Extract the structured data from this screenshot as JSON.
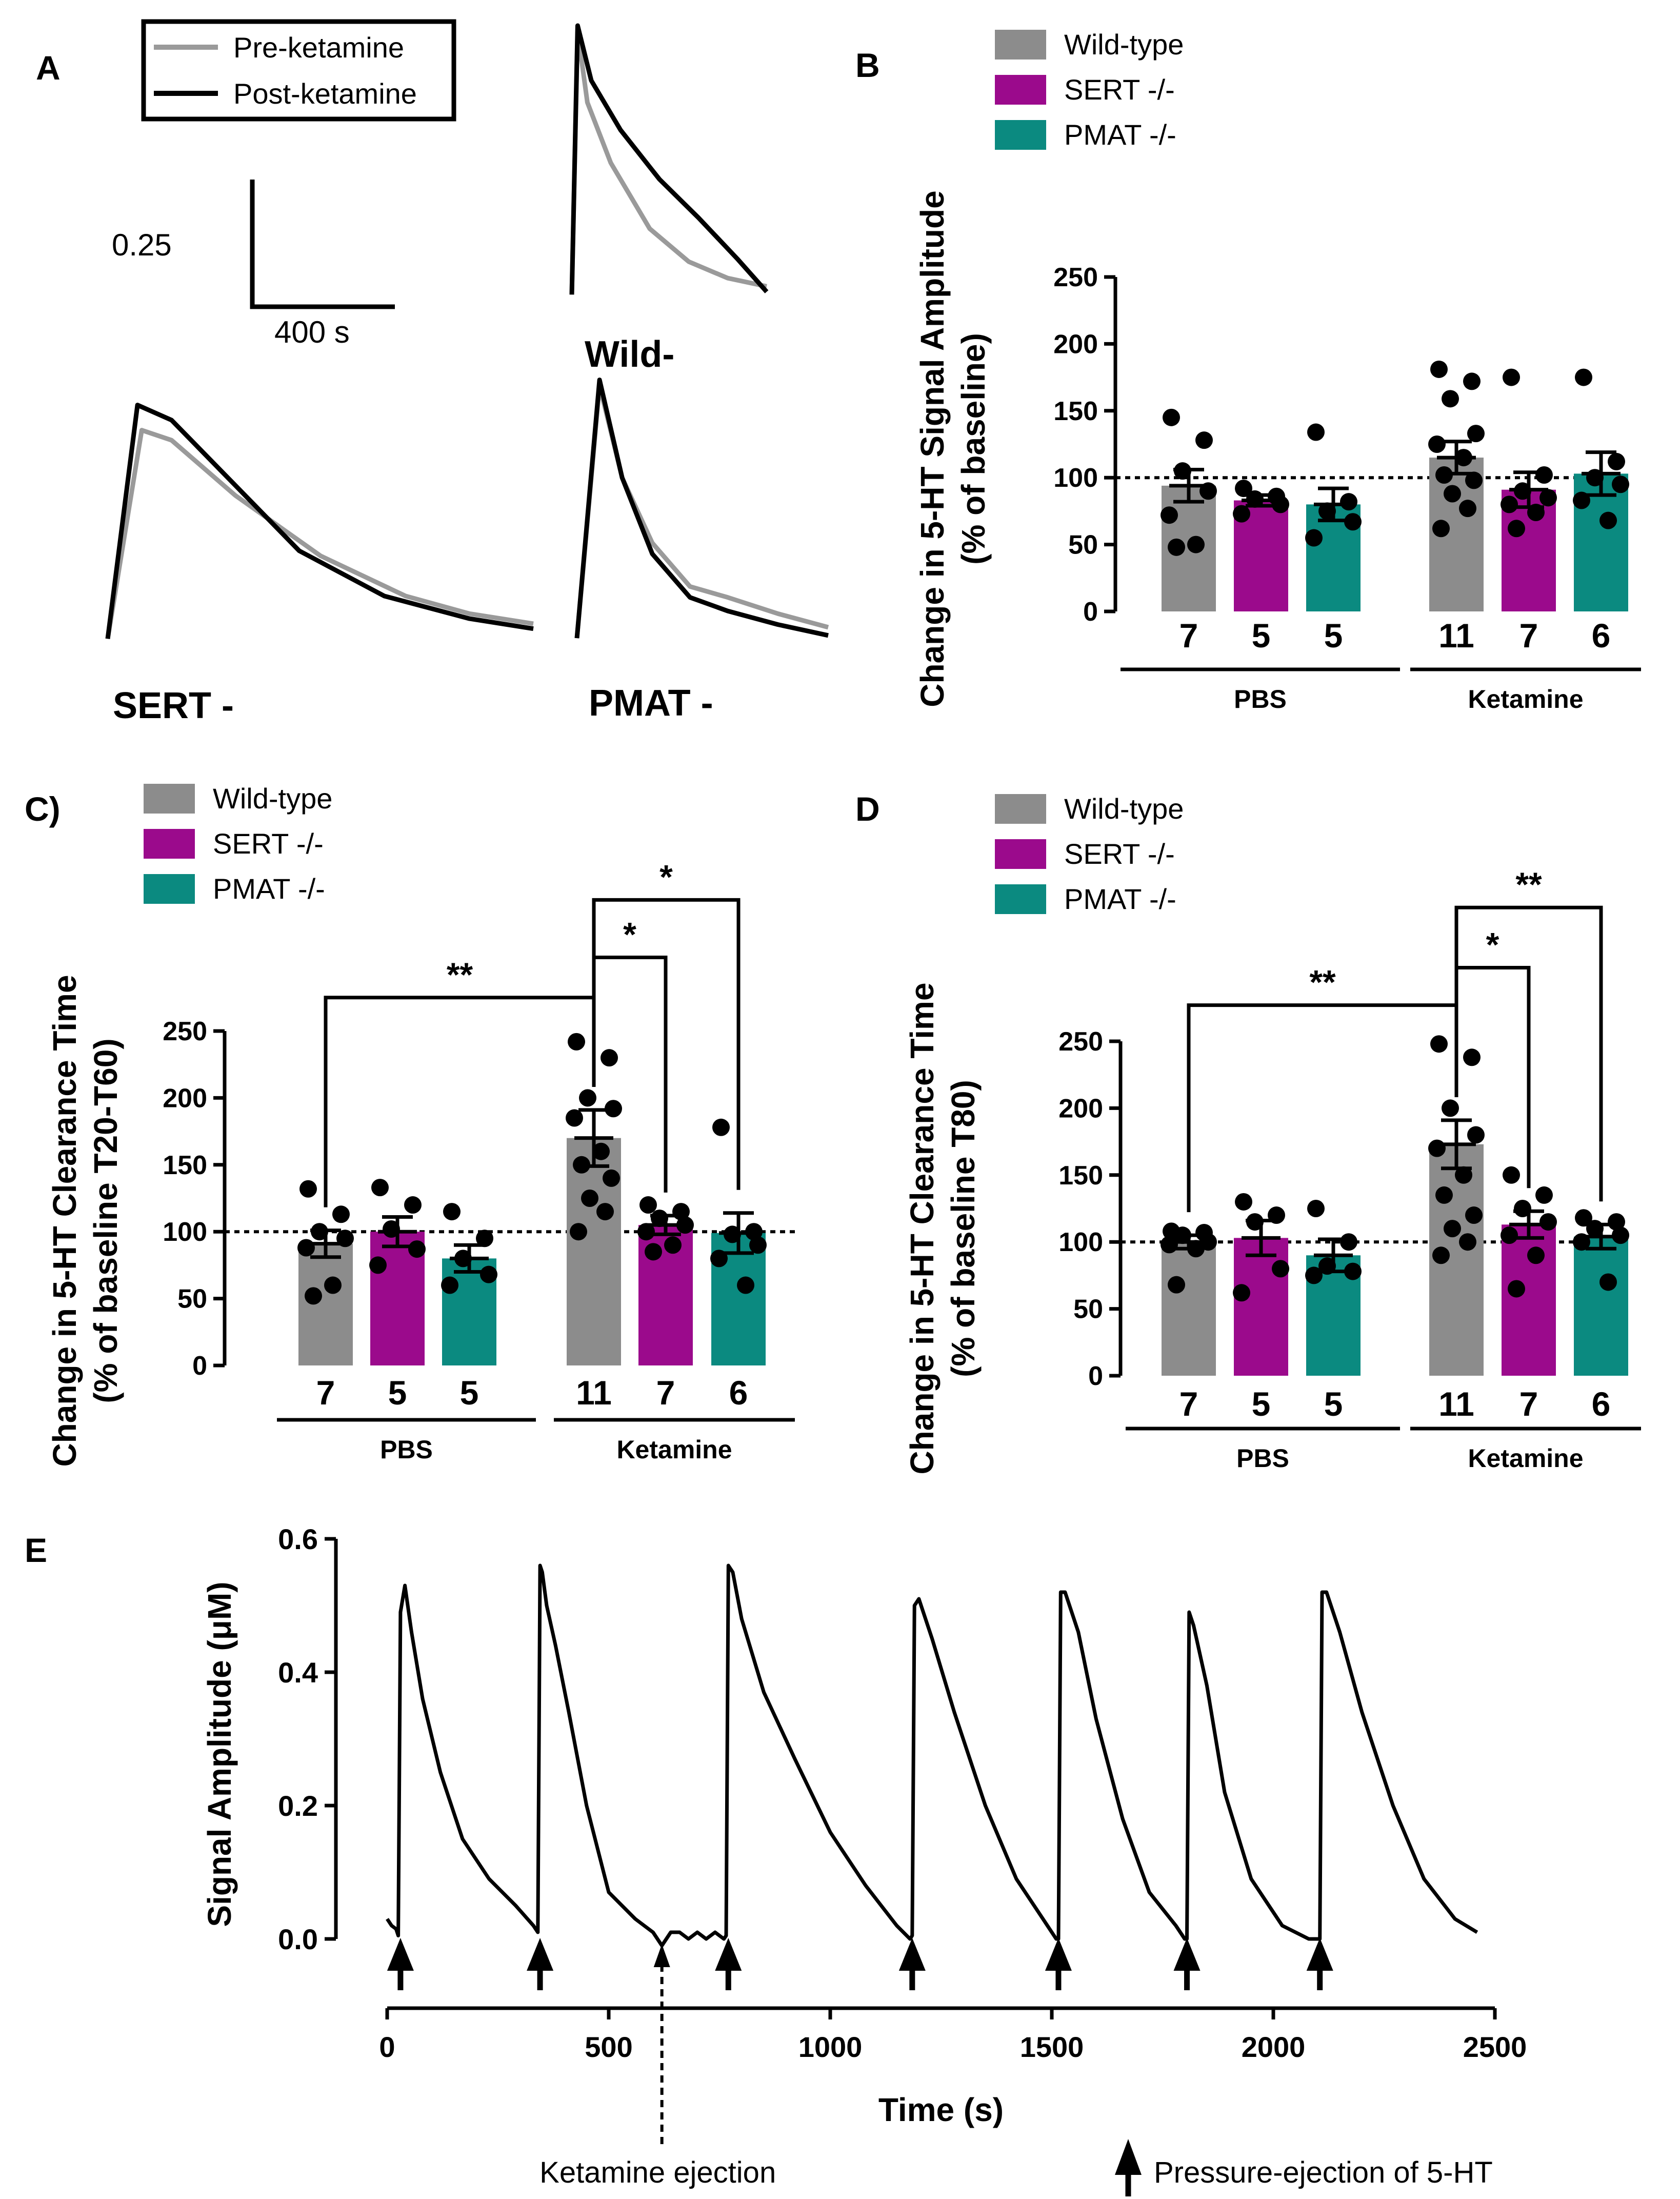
{
  "colors": {
    "wt": "#8c8c8c",
    "sert": "#9b0a8c",
    "pmat": "#0b8a80",
    "pre": "#9a9a9a",
    "post": "#000000"
  },
  "group_names": [
    "Wild-type",
    "SERT -/-",
    "PMAT -/-"
  ],
  "chart_data": [
    {
      "panel": "A",
      "type": "line",
      "label": "A",
      "legend": [
        "Pre-ketamine",
        "Post-ketamine"
      ],
      "scalebar": {
        "y_label": "0.25",
        "x_label": "400 s"
      },
      "subplots": [
        {
          "label": "Wild-",
          "pre": [
            [
              0,
              0.02
            ],
            [
              0.03,
              0.98
            ],
            [
              0.08,
              0.72
            ],
            [
              0.2,
              0.5
            ],
            [
              0.4,
              0.26
            ],
            [
              0.6,
              0.14
            ],
            [
              0.8,
              0.08
            ],
            [
              1,
              0.05
            ]
          ],
          "post": [
            [
              0,
              0.02
            ],
            [
              0.03,
              1.0
            ],
            [
              0.1,
              0.8
            ],
            [
              0.25,
              0.62
            ],
            [
              0.45,
              0.44
            ],
            [
              0.65,
              0.3
            ],
            [
              0.85,
              0.15
            ],
            [
              1,
              0.03
            ]
          ]
        },
        {
          "label": "SERT -",
          "pre": [
            [
              0,
              0.03
            ],
            [
              0.08,
              0.86
            ],
            [
              0.15,
              0.82
            ],
            [
              0.3,
              0.6
            ],
            [
              0.5,
              0.36
            ],
            [
              0.7,
              0.2
            ],
            [
              0.85,
              0.13
            ],
            [
              1,
              0.09
            ]
          ],
          "post": [
            [
              0,
              0.03
            ],
            [
              0.07,
              0.96
            ],
            [
              0.15,
              0.9
            ],
            [
              0.3,
              0.64
            ],
            [
              0.45,
              0.38
            ],
            [
              0.65,
              0.2
            ],
            [
              0.85,
              0.11
            ],
            [
              1,
              0.07
            ]
          ]
        },
        {
          "label": "PMAT -",
          "pre": [
            [
              0,
              0.03
            ],
            [
              0.09,
              0.96
            ],
            [
              0.18,
              0.62
            ],
            [
              0.3,
              0.38
            ],
            [
              0.45,
              0.22
            ],
            [
              0.6,
              0.18
            ],
            [
              0.8,
              0.12
            ],
            [
              1,
              0.07
            ]
          ],
          "post": [
            [
              0,
              0.03
            ],
            [
              0.09,
              0.98
            ],
            [
              0.18,
              0.62
            ],
            [
              0.3,
              0.34
            ],
            [
              0.45,
              0.18
            ],
            [
              0.6,
              0.13
            ],
            [
              0.8,
              0.08
            ],
            [
              1,
              0.04
            ]
          ]
        }
      ]
    },
    {
      "panel": "B",
      "type": "bar",
      "label": "B",
      "ylabel_line1": "Change in 5-HT Signal Amplitude",
      "ylabel_line2": "(% of baseline)",
      "ylim": [
        0,
        250
      ],
      "yticks": [
        "0",
        "50",
        "100",
        "150",
        "200",
        "250"
      ],
      "baseline": 100,
      "groups": [
        "PBS",
        "Ketamine"
      ],
      "series": [
        "Wild-type",
        "SERT -/-",
        "PMAT -/-"
      ],
      "bars": [
        {
          "group": "PBS",
          "series": 0,
          "mean": 94,
          "sem": 12,
          "n": "7",
          "points": [
            145,
            128,
            105,
            90,
            72,
            50,
            48
          ]
        },
        {
          "group": "PBS",
          "series": 1,
          "mean": 83,
          "sem": 4,
          "n": "5",
          "points": [
            92,
            86,
            84,
            80,
            73
          ]
        },
        {
          "group": "PBS",
          "series": 2,
          "mean": 80,
          "sem": 12,
          "n": "5",
          "points": [
            134,
            82,
            75,
            67,
            55
          ]
        },
        {
          "group": "Ketamine",
          "series": 0,
          "mean": 115,
          "sem": 12,
          "n": "11",
          "points": [
            181,
            172,
            159,
            133,
            125,
            115,
            102,
            98,
            88,
            77,
            62
          ]
        },
        {
          "group": "Ketamine",
          "series": 1,
          "mean": 91,
          "sem": 13,
          "n": "7",
          "points": [
            175,
            102,
            90,
            85,
            80,
            74,
            62
          ]
        },
        {
          "group": "Ketamine",
          "series": 2,
          "mean": 103,
          "sem": 16,
          "n": "6",
          "points": [
            175,
            112,
            100,
            95,
            83,
            68
          ]
        }
      ],
      "brackets": []
    },
    {
      "panel": "C",
      "type": "bar",
      "label": "C)",
      "ylabel_line1": "Change in 5-HT Clearance Time",
      "ylabel_line2": "(% of baseline T20-T60)",
      "ylim": [
        0,
        250
      ],
      "yticks": [
        "0",
        "50",
        "100",
        "150",
        "200",
        "250"
      ],
      "baseline": 100,
      "groups": [
        "PBS",
        "Ketamine"
      ],
      "series": [
        "Wild-type",
        "SERT -/-",
        "PMAT -/-"
      ],
      "bars": [
        {
          "group": "PBS",
          "series": 0,
          "mean": 91,
          "sem": 10,
          "n": "7",
          "points": [
            132,
            113,
            100,
            95,
            88,
            60,
            52
          ]
        },
        {
          "group": "PBS",
          "series": 1,
          "mean": 100,
          "sem": 11,
          "n": "5",
          "points": [
            133,
            120,
            102,
            87,
            75
          ]
        },
        {
          "group": "PBS",
          "series": 2,
          "mean": 80,
          "sem": 10,
          "n": "5",
          "points": [
            115,
            95,
            80,
            68,
            60
          ]
        },
        {
          "group": "Ketamine",
          "series": 0,
          "mean": 170,
          "sem": 21,
          "n": "11",
          "points": [
            242,
            230,
            200,
            192,
            185,
            160,
            150,
            140,
            125,
            115,
            100
          ]
        },
        {
          "group": "Ketamine",
          "series": 1,
          "mean": 105,
          "sem": 7,
          "n": "7",
          "points": [
            120,
            115,
            110,
            105,
            100,
            90,
            85
          ]
        },
        {
          "group": "Ketamine",
          "series": 2,
          "mean": 99,
          "sem": 15,
          "n": "6",
          "points": [
            178,
            100,
            98,
            90,
            80,
            60
          ]
        }
      ],
      "brackets": [
        {
          "from": 0,
          "to": 3,
          "y": 275,
          "label": "**"
        },
        {
          "from": 3,
          "to": 4,
          "y": 305,
          "label": "*"
        },
        {
          "from": 3,
          "to": 5,
          "y": 348,
          "label": "*"
        }
      ]
    },
    {
      "panel": "D",
      "type": "bar",
      "label": "D",
      "ylabel_line1": "Change in 5-HT Clearance Time",
      "ylabel_line2": "(% of baseline T80)",
      "ylim": [
        0,
        250
      ],
      "yticks": [
        "0",
        "50",
        "100",
        "150",
        "200",
        "250"
      ],
      "baseline": 100,
      "groups": [
        "PBS",
        "Ketamine"
      ],
      "series": [
        "Wild-type",
        "SERT -/-",
        "PMAT -/-"
      ],
      "bars": [
        {
          "group": "PBS",
          "series": 0,
          "mean": 100,
          "sem": 5,
          "n": "7",
          "points": [
            108,
            107,
            105,
            100,
            98,
            95,
            68
          ]
        },
        {
          "group": "PBS",
          "series": 1,
          "mean": 103,
          "sem": 13,
          "n": "5",
          "points": [
            130,
            120,
            115,
            80,
            62
          ]
        },
        {
          "group": "PBS",
          "series": 2,
          "mean": 90,
          "sem": 12,
          "n": "5",
          "points": [
            125,
            100,
            82,
            78,
            75
          ]
        },
        {
          "group": "Ketamine",
          "series": 0,
          "mean": 173,
          "sem": 18,
          "n": "11",
          "points": [
            248,
            238,
            200,
            180,
            170,
            150,
            135,
            120,
            110,
            100,
            90
          ]
        },
        {
          "group": "Ketamine",
          "series": 1,
          "mean": 113,
          "sem": 10,
          "n": "7",
          "points": [
            150,
            135,
            125,
            115,
            105,
            90,
            65
          ]
        },
        {
          "group": "Ketamine",
          "series": 2,
          "mean": 104,
          "sem": 9,
          "n": "6",
          "points": [
            118,
            115,
            110,
            105,
            100,
            70
          ]
        }
      ],
      "brackets": [
        {
          "from": 0,
          "to": 3,
          "y": 277,
          "label": "**"
        },
        {
          "from": 3,
          "to": 4,
          "y": 305,
          "label": "*"
        },
        {
          "from": 3,
          "to": 5,
          "y": 350,
          "label": "**"
        }
      ]
    },
    {
      "panel": "E",
      "type": "line",
      "label": "E",
      "ylabel": "Signal Amplitude (μM)",
      "xlabel": "Time (s)",
      "xlim": [
        0,
        2500
      ],
      "ylim": [
        0,
        0.6
      ],
      "xticks": [
        "0",
        "500",
        "1000",
        "1500",
        "2000",
        "2500"
      ],
      "yticks": [
        "0.0",
        "0.2",
        "0.4",
        "0.6"
      ],
      "series": [
        {
          "name": "trace",
          "x": [
            0,
            10,
            20,
            25,
            30,
            40,
            55,
            80,
            120,
            170,
            230,
            290,
            330,
            340,
            345,
            350,
            360,
            380,
            410,
            450,
            500,
            560,
            600,
            620,
            640,
            660,
            680,
            700,
            720,
            740,
            760,
            765,
            770,
            780,
            800,
            850,
            920,
            1000,
            1080,
            1150,
            1180,
            1185,
            1190,
            1200,
            1230,
            1280,
            1350,
            1420,
            1490,
            1510,
            1515,
            1520,
            1530,
            1560,
            1600,
            1660,
            1720,
            1780,
            1800,
            1805,
            1810,
            1820,
            1850,
            1890,
            1950,
            2020,
            2080,
            2100,
            2105,
            2110,
            2120,
            2150,
            2200,
            2270,
            2340,
            2410,
            2460
          ],
          "y": [
            0.03,
            0.02,
            0.015,
            0.005,
            0.49,
            0.53,
            0.46,
            0.36,
            0.25,
            0.15,
            0.09,
            0.05,
            0.02,
            0.01,
            0.56,
            0.55,
            0.5,
            0.44,
            0.34,
            0.2,
            0.07,
            0.03,
            0.01,
            -0.01,
            0.01,
            0.01,
            0.0,
            0.01,
            0.0,
            0.01,
            0.0,
            0.005,
            0.56,
            0.55,
            0.48,
            0.37,
            0.27,
            0.16,
            0.08,
            0.02,
            0.0,
            0.005,
            0.5,
            0.51,
            0.45,
            0.34,
            0.2,
            0.09,
            0.02,
            0.0,
            0.0,
            0.52,
            0.52,
            0.46,
            0.33,
            0.18,
            0.07,
            0.02,
            0.0,
            0.0,
            0.49,
            0.47,
            0.38,
            0.22,
            0.09,
            0.02,
            0.0,
            0.0,
            0.0,
            0.52,
            0.52,
            0.46,
            0.34,
            0.2,
            0.09,
            0.03,
            0.01
          ]
        }
      ],
      "arrows_solid": [
        30,
        345,
        770,
        1185,
        1515,
        1805,
        2105
      ],
      "arrow_dashed": 620,
      "annotation_ketamine": "Ketamine ejection",
      "annotation_pressure": "Pressure-ejection of 5-HT"
    }
  ]
}
